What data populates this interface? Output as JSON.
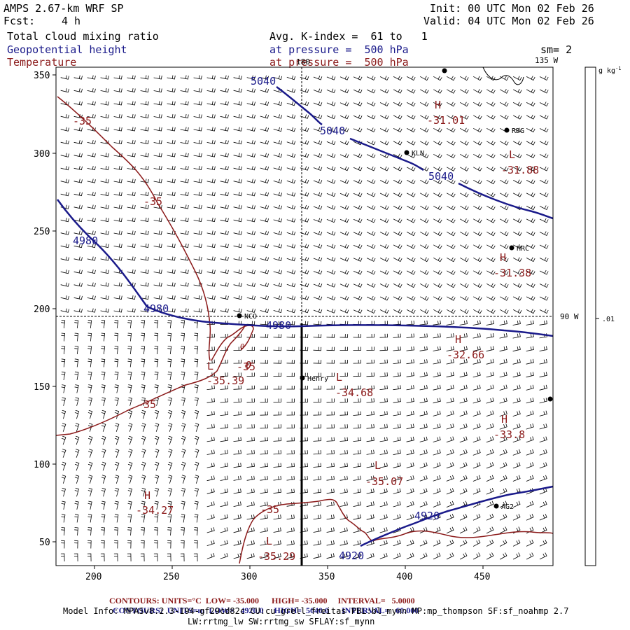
{
  "header": {
    "model": "AMPS 2.67-km WRF SP",
    "fcst_label": "Fcst:",
    "fcst_value": "4 h",
    "init": "Init: 00 UTC Mon 02 Feb 26",
    "valid": "Valid: 04 UTC Mon 02 Feb 26",
    "field1": "Total cloud mixing ratio",
    "field1_desc": "Avg. K-index =  61 to   1",
    "field2": "Geopotential height",
    "field2_desc": "at pressure =  500 hPa",
    "field3": "Temperature",
    "field3_desc": "at pressure =  500 hPa",
    "smoothing": "sm= 2"
  },
  "colors": {
    "height": "#1a1a8a",
    "temperature": "#8b1a1a",
    "grid": "#000000"
  },
  "map": {
    "x_ticks": [
      "200",
      "250",
      "300",
      "350",
      "400",
      "450"
    ],
    "y_ticks": [
      "350",
      "300",
      "250",
      "200",
      "150",
      "100",
      "50"
    ],
    "lon_labels": {
      "top": "180",
      "top_right": "135 W",
      "right": "90 W"
    },
    "stations": [
      {
        "id": "st-rdg",
        "label": "RDG"
      },
      {
        "id": "st-kln",
        "label": "KLN"
      },
      {
        "id": "st-hrc",
        "label": "HRC"
      },
      {
        "id": "st-nco",
        "label": "NCO"
      },
      {
        "id": "st-henry",
        "label": "Henry"
      },
      {
        "id": "st-ag2",
        "label": "AG2"
      },
      {
        "id": "st-top",
        "label": ""
      },
      {
        "id": "st-right",
        "label": ""
      }
    ],
    "height_labels": [
      "5040",
      "5040",
      "5040",
      "4980",
      "4980",
      "4980",
      "4920",
      "4920"
    ],
    "temp_contour_labels": [
      "-35",
      "-35",
      "-35",
      "-35",
      "-35"
    ],
    "centers": [
      {
        "type": "H",
        "value": "-31.01"
      },
      {
        "type": "L",
        "value": "-31.88"
      },
      {
        "type": "H",
        "value": "-31.38"
      },
      {
        "type": "H",
        "value": "-32.66"
      },
      {
        "type": "L",
        "value": "-34.68"
      },
      {
        "type": "H",
        "value": "-33.8"
      },
      {
        "type": "L",
        "value": "-35.07"
      },
      {
        "type": "H",
        "value": "-34.27"
      },
      {
        "type": "L",
        "value": "-35.39"
      },
      {
        "type": "L",
        "value": "-35.29"
      }
    ],
    "small_marks": [
      "0",
      "0"
    ]
  },
  "colorbar": {
    "units": "g kg",
    "units_sup": "-1",
    "tick": ".01"
  },
  "footer": {
    "temp_line": {
      "label": "CONTOURS:",
      "units": "UNITS=°C",
      "low": "LOW= -35.000",
      "high": "HIGH= -35.000",
      "interval": "INTERVAL=   5.0000"
    },
    "height_line": {
      "label": "CONTOURS:",
      "units": "UNITS=m",
      "low": "LOW=   4920.0",
      "high": "HIGH=  5040.0",
      "interval": "INTERVAL=   60.000"
    },
    "model_info": "Model Info: MPASv8.2.3-194-gf29cd82c CU:cu_grell_freitas PBL:bl_mynn MP:mp_thompson SF:sf_noahmp 2.7",
    "model_info2": "LW:rrtmg_lw SW:rrtmg_sw SFLAY:sf_mynn"
  }
}
